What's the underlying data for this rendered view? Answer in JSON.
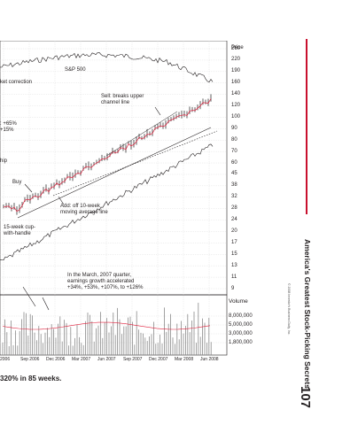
{
  "page": {
    "side_title": "America's Greatest Stock-Picking Secrets",
    "page_number": "107",
    "copyright": "© 2008 Investor's Business Daily, Inc.",
    "caption": "320% in 85 weeks.",
    "accent_color": "#c8102e"
  },
  "chart": {
    "price_axis_title": "Price",
    "price_ticks": [
      "260",
      "220",
      "190",
      "160",
      "140",
      "120",
      "100",
      "90",
      "80",
      "70",
      "60",
      "45",
      "38",
      "32",
      "28",
      "24",
      "20",
      "17",
      "15",
      "13",
      "11",
      "9"
    ],
    "volume_axis_title": "Volume",
    "volume_ticks": [
      "8,000,000",
      "5,000,000",
      "3,000,000",
      "1,800,000"
    ],
    "date_ticks": [
      "2006",
      "Sep 2006",
      "Dec 2006",
      "Mar 2007",
      "Jun 2007",
      "Sep 2007",
      "Dec 2007",
      "Mar 2008",
      "Jun 2008"
    ],
    "annotations": {
      "sp500": "S&P 500",
      "market_correction": "ket correction",
      "sell_line1": "Sell: breaks upper",
      "sell_line2": "channel line",
      "pct_line1": ": +65%",
      "pct_line2": "+15%",
      "ship": "hip",
      "buy": "Buy",
      "add_line1": "Add: off 10-week",
      "add_line2": "moving average line",
      "cup_line1": "15-week cup-",
      "cup_line2": "with-handle",
      "earnings_line1": "In the March, 2007 quarter,",
      "earnings_line2": "earnings growth accelerated",
      "earnings_line3": "+34%, +53%, +107%, to +126%"
    },
    "colors": {
      "price_bars": "#1a1a1a",
      "volume_bars": "#8a8a8a",
      "relative_strength": "#e0203c",
      "grid": "#d7d7d7"
    }
  }
}
